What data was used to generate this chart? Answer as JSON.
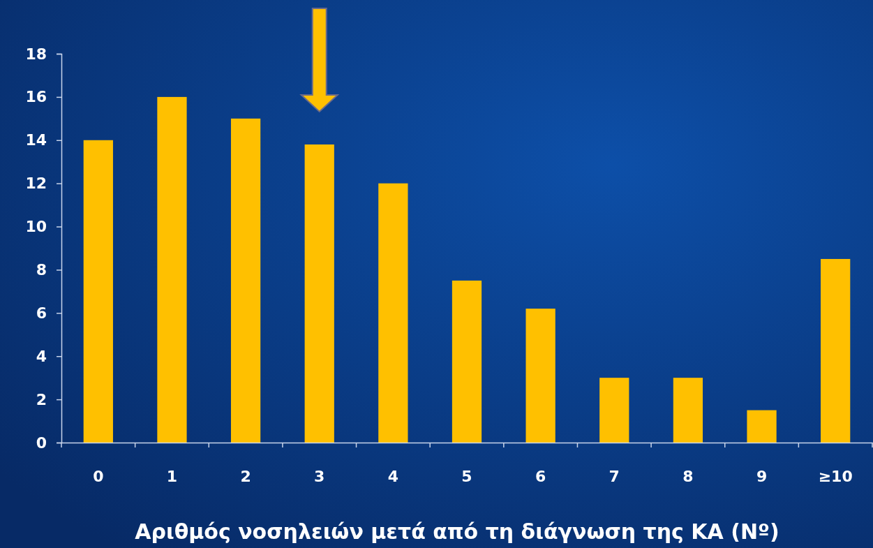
{
  "chart_data": {
    "type": "bar",
    "xlabel": "Αριθμός νοσηλειών μετά από τη διάγνωση της ΚΑ (Nº)",
    "categories": [
      "0",
      "1",
      "2",
      "3",
      "4",
      "5",
      "6",
      "7",
      "8",
      "9",
      "≥10"
    ],
    "values": [
      14,
      16,
      15,
      13.8,
      12,
      7.5,
      6.2,
      3,
      3,
      1.5,
      8.5
    ],
    "color": "#ffc000",
    "ylim": [
      0,
      18
    ],
    "yticks": [
      0,
      2,
      4,
      6,
      8,
      10,
      12,
      14,
      16,
      18
    ],
    "grid": false
  }
}
